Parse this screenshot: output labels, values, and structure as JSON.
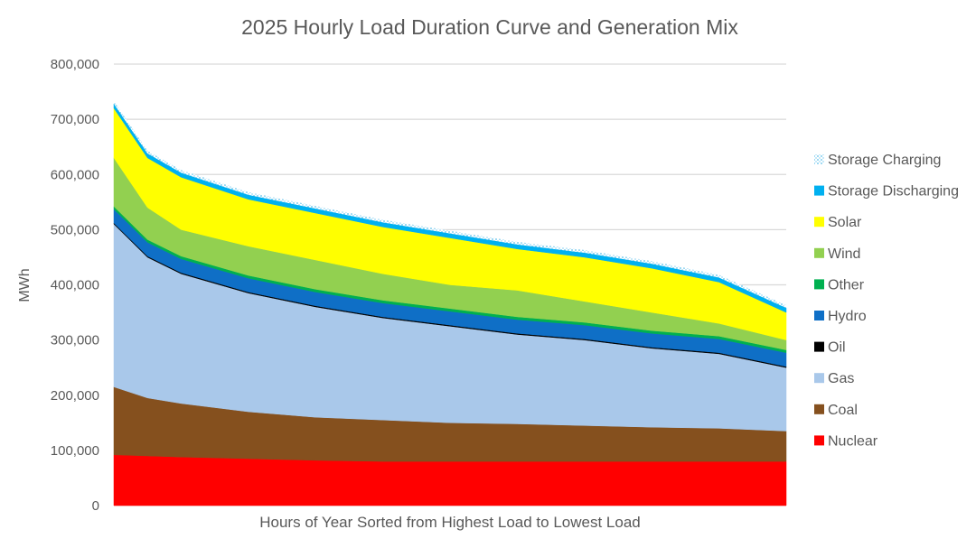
{
  "chart_data": {
    "type": "area",
    "stacked": true,
    "title": "2025 Hourly Load Duration Curve and Generation Mix",
    "xlabel": "Hours of Year Sorted from Highest Load to Lowest Load",
    "ylabel": "MWh",
    "ylim": [
      0,
      800000
    ],
    "yticks": [
      "0",
      "100,000",
      "200,000",
      "300,000",
      "400,000",
      "500,000",
      "600,000",
      "700,000",
      "800,000"
    ],
    "ytick_values": [
      0,
      100000,
      200000,
      300000,
      400000,
      500000,
      600000,
      700000,
      800000
    ],
    "grid": true,
    "legend_position": "right",
    "x": [
      0,
      438,
      876,
      1752,
      2628,
      3504,
      4380,
      5256,
      6132,
      7008,
      7884,
      8760
    ],
    "xlim": [
      0,
      8760
    ],
    "series": [
      {
        "name": "Nuclear",
        "color": "#FF0000",
        "values": [
          92000,
          90000,
          88000,
          85000,
          82000,
          80000,
          80000,
          80000,
          80000,
          80000,
          80000,
          80000
        ]
      },
      {
        "name": "Coal",
        "color": "#85501E",
        "values": [
          123000,
          105000,
          97000,
          85000,
          78000,
          75000,
          70000,
          68000,
          65000,
          62000,
          60000,
          55000
        ]
      },
      {
        "name": "Gas",
        "color": "#A9C8EA",
        "values": [
          295000,
          255000,
          235000,
          215000,
          200000,
          185000,
          175000,
          162000,
          155000,
          143000,
          135000,
          115000
        ]
      },
      {
        "name": "Oil",
        "color": "#000000",
        "values": [
          2000,
          2000,
          2000,
          2000,
          2000,
          2000,
          2000,
          2000,
          2000,
          2000,
          2000,
          2000
        ]
      },
      {
        "name": "Hydro",
        "color": "#0F6FC6",
        "values": [
          25000,
          25000,
          25000,
          25000,
          25000,
          25000,
          25000,
          25000,
          25000,
          25000,
          25000,
          25000
        ]
      },
      {
        "name": "Other",
        "color": "#00B050",
        "values": [
          5000,
          5000,
          5000,
          5000,
          5000,
          5000,
          5000,
          5000,
          5000,
          5000,
          5000,
          5000
        ]
      },
      {
        "name": "Wind",
        "color": "#92D050",
        "values": [
          88000,
          58000,
          48000,
          53000,
          53000,
          48000,
          43000,
          48000,
          38000,
          33000,
          23000,
          18000
        ]
      },
      {
        "name": "Solar",
        "color": "#FFFF00",
        "values": [
          90000,
          90000,
          95000,
          85000,
          85000,
          85000,
          85000,
          75000,
          80000,
          80000,
          75000,
          50000
        ]
      },
      {
        "name": "Storage Discharging",
        "color": "#00B0F0",
        "values": [
          8000,
          8000,
          8000,
          8000,
          8000,
          8000,
          8000,
          8000,
          8000,
          8000,
          8000,
          8000
        ]
      },
      {
        "name": "Storage Charging",
        "color": "#9DD9F5",
        "pattern": "dotted",
        "values": [
          5000,
          5000,
          5000,
          5000,
          5000,
          5000,
          5000,
          5000,
          5000,
          5000,
          5000,
          5000
        ]
      }
    ],
    "legend_order": [
      "Storage Charging",
      "Storage Discharging",
      "Solar",
      "Wind",
      "Other",
      "Hydro",
      "Oil",
      "Gas",
      "Coal",
      "Nuclear"
    ]
  }
}
